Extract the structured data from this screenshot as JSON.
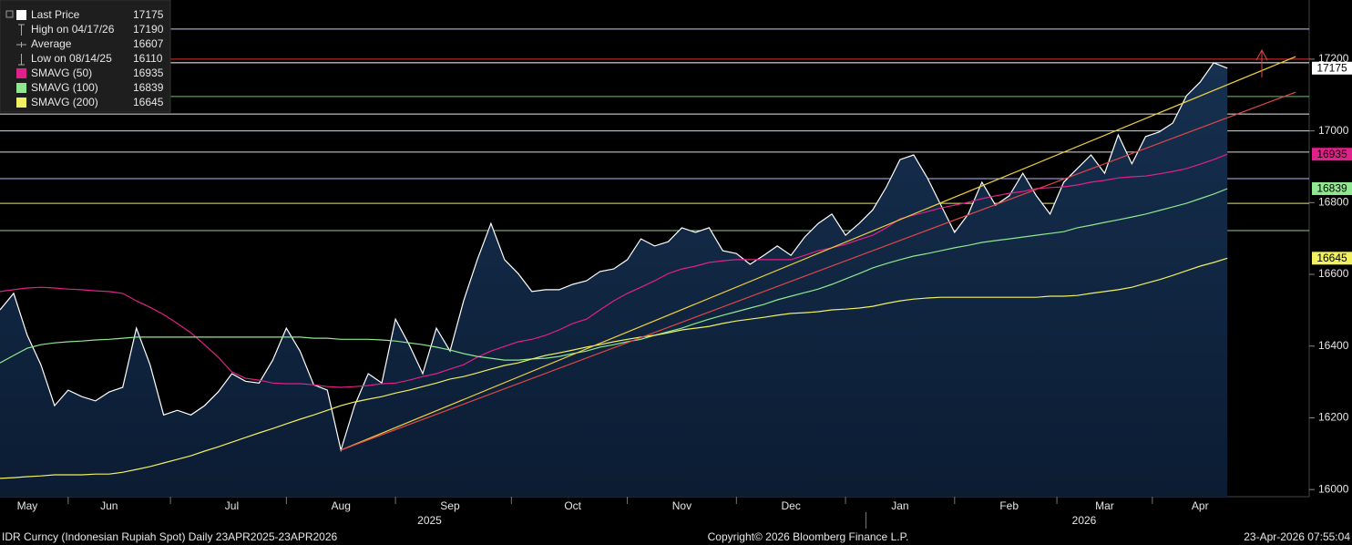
{
  "chart_data": {
    "type": "area",
    "categories": [
      null,
      null,
      "May",
      null,
      null,
      null,
      null,
      null,
      "Jun",
      null,
      null,
      null,
      null,
      null,
      null,
      null,
      null,
      "Jul",
      null,
      null,
      null,
      null,
      null,
      null,
      null,
      "Aug",
      null,
      null,
      null,
      null,
      null,
      null,
      null,
      "Sep",
      null,
      null,
      null,
      null,
      null,
      null,
      null,
      null,
      "Oct",
      null,
      null,
      null,
      null,
      null,
      null,
      null,
      "Nov",
      null,
      null,
      null,
      null,
      null,
      null,
      null,
      "Dec",
      null,
      null,
      null,
      null,
      null,
      null,
      null,
      "Jan",
      null,
      null,
      null,
      null,
      null,
      null,
      null,
      "Feb",
      null,
      null,
      null,
      null,
      null,
      null,
      "Mar",
      null,
      null,
      null,
      null,
      null,
      null,
      "Apr",
      null,
      null,
      null,
      null,
      null,
      null,
      null
    ],
    "category_groups": [
      {
        "label": "2025",
        "first": 0,
        "last": 63
      },
      {
        "label": "2026",
        "first": 64,
        "last": 95
      }
    ],
    "series": [
      {
        "name": "Last Price",
        "color": "#ffffff",
        "values": [
          16501,
          16547,
          16430,
          16348,
          16234,
          16277,
          16259,
          16247,
          16272,
          16285,
          16450,
          16348,
          16208,
          16221,
          16208,
          16234,
          16272,
          16323,
          16302,
          16297,
          16361,
          16450,
          16386,
          16292,
          16277,
          16110,
          16234,
          16323,
          16297,
          16475,
          16404,
          16323,
          16450,
          16386,
          16526,
          16641,
          16742,
          16641,
          16602,
          16552,
          16557,
          16557,
          16572,
          16582,
          16608,
          16615,
          16641,
          16699,
          16679,
          16691,
          16730,
          16717,
          16730,
          16666,
          16658,
          16628,
          16653,
          16679,
          16653,
          16704,
          16742,
          16768,
          16709,
          16742,
          16780,
          16844,
          16920,
          16933,
          16869,
          16793,
          16717,
          16768,
          16857,
          16793,
          16819,
          16882,
          16819,
          16768,
          16857,
          16895,
          16933,
          16882,
          16989,
          16908,
          16984,
          16997,
          17022,
          17098,
          17136,
          17190,
          17175,
          null,
          null,
          null,
          null,
          null
        ]
      },
      {
        "name": "SMAVG (50)",
        "color": "#e0218a",
        "values": [
          16552,
          16557,
          16562,
          16564,
          16562,
          16559,
          16557,
          16554,
          16552,
          16547,
          16526,
          16508,
          16488,
          16463,
          16437,
          16404,
          16369,
          16328,
          16310,
          16305,
          16297,
          16295,
          16295,
          16292,
          16287,
          16285,
          16287,
          16290,
          16295,
          16297,
          16305,
          16315,
          16323,
          16336,
          16348,
          16369,
          16386,
          16399,
          16412,
          16419,
          16430,
          16445,
          16463,
          16475,
          16501,
          16526,
          16547,
          16564,
          16582,
          16602,
          16615,
          16623,
          16633,
          16638,
          16641,
          16641,
          16641,
          16641,
          16641,
          16653,
          16666,
          16674,
          16684,
          16697,
          16709,
          16730,
          16755,
          16765,
          16775,
          16785,
          16793,
          16801,
          16811,
          16819,
          16826,
          16831,
          16839,
          16842,
          16844,
          16849,
          16857,
          16862,
          16869,
          16872,
          16874,
          16880,
          16887,
          16895,
          16907,
          16920,
          16935,
          null,
          null,
          null,
          null,
          null
        ]
      },
      {
        "name": "SMAVG (100)",
        "color": "#8fe88f",
        "values": [
          16353,
          16374,
          16394,
          16404,
          16409,
          16412,
          16414,
          16417,
          16419,
          16422,
          16425,
          16425,
          16425,
          16425,
          16425,
          16425,
          16425,
          16425,
          16425,
          16425,
          16425,
          16425,
          16425,
          16422,
          16422,
          16419,
          16419,
          16419,
          16417,
          16414,
          16409,
          16404,
          16397,
          16389,
          16379,
          16371,
          16366,
          16361,
          16361,
          16364,
          16366,
          16371,
          16379,
          16386,
          16397,
          16404,
          16412,
          16419,
          16430,
          16440,
          16450,
          16463,
          16475,
          16486,
          16496,
          16506,
          16516,
          16529,
          16539,
          16549,
          16559,
          16572,
          16587,
          16602,
          16618,
          16630,
          16641,
          16651,
          16658,
          16666,
          16674,
          16681,
          16689,
          16694,
          16699,
          16704,
          16709,
          16714,
          16719,
          16730,
          16737,
          16745,
          16752,
          16760,
          16768,
          16778,
          16788,
          16798,
          16811,
          16824,
          16839,
          null,
          null,
          null,
          null,
          null
        ]
      },
      {
        "name": "SMAVG (200)",
        "color": "#f0f060",
        "values": [
          16031,
          16033,
          16036,
          16038,
          16041,
          16041,
          16041,
          16043,
          16043,
          16048,
          16056,
          16064,
          16074,
          16084,
          16094,
          16107,
          16119,
          16132,
          16145,
          16158,
          16170,
          16183,
          16196,
          16208,
          16221,
          16234,
          16244,
          16252,
          16259,
          16269,
          16277,
          16287,
          16297,
          16308,
          16315,
          16325,
          16336,
          16346,
          16353,
          16364,
          16374,
          16381,
          16389,
          16397,
          16404,
          16412,
          16419,
          16425,
          16430,
          16437,
          16445,
          16450,
          16455,
          16463,
          16470,
          16475,
          16480,
          16486,
          16491,
          16493,
          16496,
          16501,
          16503,
          16506,
          16511,
          16519,
          16526,
          16531,
          16534,
          16536,
          16536,
          16536,
          16536,
          16536,
          16536,
          16536,
          16536,
          16539,
          16539,
          16541,
          16547,
          16552,
          16557,
          16564,
          16575,
          16585,
          16597,
          16610,
          16623,
          16633,
          16645,
          null,
          null,
          null,
          null,
          null
        ]
      }
    ],
    "stats": [
      {
        "label": "High on 04/17/26",
        "value": 17190
      },
      {
        "label": "Average",
        "value": 16607
      },
      {
        "label": "Low on 08/14/25",
        "value": 16110
      }
    ],
    "levels": [
      {
        "value": 17284,
        "color": "#c8c8ff"
      },
      {
        "value": 17200,
        "color": "#e03030"
      },
      {
        "value": 17190,
        "color": "#ffffff"
      },
      {
        "value": 17096,
        "color": "#5ad05a"
      },
      {
        "value": 17047,
        "color": "#e8e8e8"
      },
      {
        "value": 17000,
        "color": "#a0f0ff"
      },
      {
        "value": 16941,
        "color": "#dddddd"
      },
      {
        "value": 16867,
        "color": "#b8b8ff"
      },
      {
        "value": 16798,
        "color": "#e8e860"
      },
      {
        "value": 16722,
        "color": "#8ccc8c"
      }
    ],
    "trendlines": [
      {
        "color": "#f0d040",
        "start": {
          "index": 25,
          "value": 16110
        },
        "end": {
          "index": 95,
          "value": 17207
        }
      },
      {
        "color": "#e04848",
        "start": {
          "index": 25,
          "value": 16110
        },
        "end": {
          "index": 95,
          "value": 17108
        }
      }
    ],
    "ylim": [
      15980,
      17365
    ],
    "yticks": [
      16000,
      16200,
      16400,
      16600,
      16800,
      17000,
      17200
    ],
    "footer": {
      "left": "IDR Curncy (Indonesian Rupiah Spot) Daily 23APR2025-23APR2026",
      "center": "Copyright© 2026 Bloomberg Finance L.P.",
      "right": "23-Apr-2026 07:55:04"
    }
  }
}
